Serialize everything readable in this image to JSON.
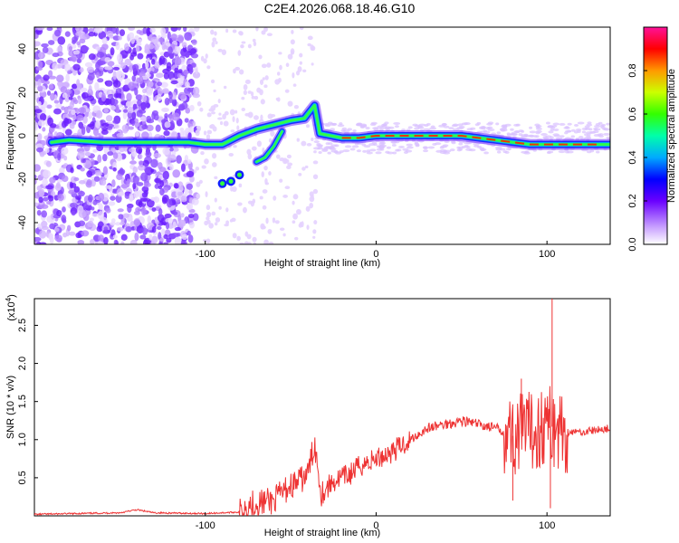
{
  "title": "C2E4.2026.068.18.46.G10",
  "chart_data": [
    {
      "type": "heatmap",
      "name": "spectrogram",
      "xlabel": "Height of straight line (km)",
      "ylabel": "Frequency (Hz)",
      "xlim": [
        -200,
        137
      ],
      "ylim": [
        -50,
        50
      ],
      "xticks": [
        -100,
        0,
        100
      ],
      "yticks": [
        -40,
        -20,
        0,
        20,
        40
      ],
      "track": [
        {
          "x": -190,
          "y": -3
        },
        {
          "x": -180,
          "y": -2
        },
        {
          "x": -160,
          "y": -3
        },
        {
          "x": -140,
          "y": -3
        },
        {
          "x": -120,
          "y": -3
        },
        {
          "x": -110,
          "y": -3
        },
        {
          "x": -100,
          "y": -4
        },
        {
          "x": -90,
          "y": -4
        },
        {
          "x": -80,
          "y": 0
        },
        {
          "x": -70,
          "y": 3
        },
        {
          "x": -60,
          "y": 5
        },
        {
          "x": -50,
          "y": 7
        },
        {
          "x": -42,
          "y": 8
        },
        {
          "x": -38,
          "y": 12
        },
        {
          "x": -36,
          "y": 14
        },
        {
          "x": -33,
          "y": 1
        },
        {
          "x": -20,
          "y": -1
        },
        {
          "x": -10,
          "y": -1
        },
        {
          "x": 0,
          "y": 0
        },
        {
          "x": 10,
          "y": 0
        },
        {
          "x": 20,
          "y": 0
        },
        {
          "x": 30,
          "y": 0
        },
        {
          "x": 40,
          "y": 0
        },
        {
          "x": 50,
          "y": 0
        },
        {
          "x": 60,
          "y": -1
        },
        {
          "x": 70,
          "y": -2
        },
        {
          "x": 80,
          "y": -3
        },
        {
          "x": 90,
          "y": -4
        },
        {
          "x": 100,
          "y": -4
        },
        {
          "x": 110,
          "y": -4
        },
        {
          "x": 120,
          "y": -4
        },
        {
          "x": 130,
          "y": -4
        },
        {
          "x": 137,
          "y": -4
        }
      ],
      "branch": [
        {
          "x": -55,
          "y": 2
        },
        {
          "x": -60,
          "y": -5
        },
        {
          "x": -65,
          "y": -10
        },
        {
          "x": -70,
          "y": -12
        }
      ],
      "isolated": [
        {
          "x": -90,
          "y": -22
        },
        {
          "x": -85,
          "y": -21
        },
        {
          "x": -80,
          "y": -18
        }
      ],
      "colorbar": {
        "label": "Normalized spectral amplitude",
        "range": [
          0,
          1
        ],
        "ticks": [
          "0.0",
          "0.2",
          "0.4",
          "0.6",
          "0.8"
        ]
      }
    },
    {
      "type": "line",
      "name": "snr",
      "xlabel": "Height of straight line (km)",
      "ylabel": "SNR (10 * v/v)",
      "multiplier": "(x10",
      "multiplier_exp": "4",
      "multiplier_close": ")",
      "xlim": [
        -200,
        137
      ],
      "ylim": [
        0,
        2.85
      ],
      "xticks": [
        -100,
        0,
        100
      ],
      "yticks": [
        "0.5",
        "1.0",
        "1.5",
        "2.0",
        "2.5"
      ],
      "series": [
        {
          "name": "SNR",
          "color": "#ee3333",
          "points": [
            [
              -200,
              0.02
            ],
            [
              -150,
              0.04
            ],
            [
              -140,
              0.08
            ],
            [
              -130,
              0.04
            ],
            [
              -100,
              0.03
            ],
            [
              -80,
              0.05
            ],
            [
              -75,
              0.15
            ],
            [
              -60,
              0.2
            ],
            [
              -50,
              0.4
            ],
            [
              -45,
              0.45
            ],
            [
              -40,
              0.55
            ],
            [
              -36,
              0.95
            ],
            [
              -32,
              0.3
            ],
            [
              -25,
              0.45
            ],
            [
              -15,
              0.55
            ],
            [
              -10,
              0.65
            ],
            [
              0,
              0.75
            ],
            [
              10,
              0.85
            ],
            [
              20,
              1.0
            ],
            [
              30,
              1.15
            ],
            [
              40,
              1.2
            ],
            [
              50,
              1.25
            ],
            [
              60,
              1.2
            ],
            [
              70,
              1.15
            ],
            [
              80,
              1.05
            ],
            [
              90,
              1.1
            ],
            [
              100,
              1.2
            ],
            [
              110,
              1.1
            ],
            [
              120,
              1.1
            ],
            [
              137,
              1.15
            ]
          ],
          "spikes": [
            [
              103,
              2.85
            ],
            [
              102,
              0.1
            ],
            [
              85,
              1.8
            ],
            [
              80,
              0.2
            ]
          ]
        }
      ]
    }
  ]
}
